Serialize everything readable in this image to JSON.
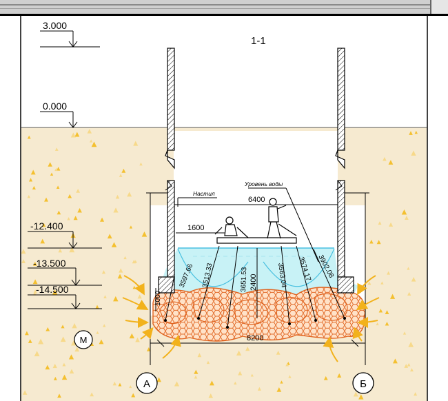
{
  "section": {
    "title": "1-1"
  },
  "levels": [
    {
      "id": "lvl-3000",
      "label": "3.000"
    },
    {
      "id": "lvl-0000",
      "label": "0.000"
    },
    {
      "id": "lvl-12400",
      "label": "-12.400"
    },
    {
      "id": "lvl-13500",
      "label": "-13.500"
    },
    {
      "id": "lvl-14500",
      "label": "-14.500"
    }
  ],
  "callouts": {
    "platform": "Настил",
    "water_level": "Уровень воды"
  },
  "dimensions": {
    "d6400": "6400",
    "d1600": "1600",
    "d8200": "8200",
    "d1000": "1000",
    "d2400": "2400",
    "r1": "3597.66",
    "r2": "3513.33",
    "r3": "3651.53",
    "r4": "3563.04",
    "r5": "3574.17",
    "r6": "3902.08"
  },
  "axes": {
    "a": "А",
    "b": "Б"
  },
  "soil_mark": "М",
  "colors": {
    "soil": "#f6ead0",
    "water": "#c8f2f6",
    "water_line": "#48c0e0",
    "stone_fill": "#ffe2c8",
    "stone_line": "#e06420",
    "arrow": "#f2b21c"
  }
}
